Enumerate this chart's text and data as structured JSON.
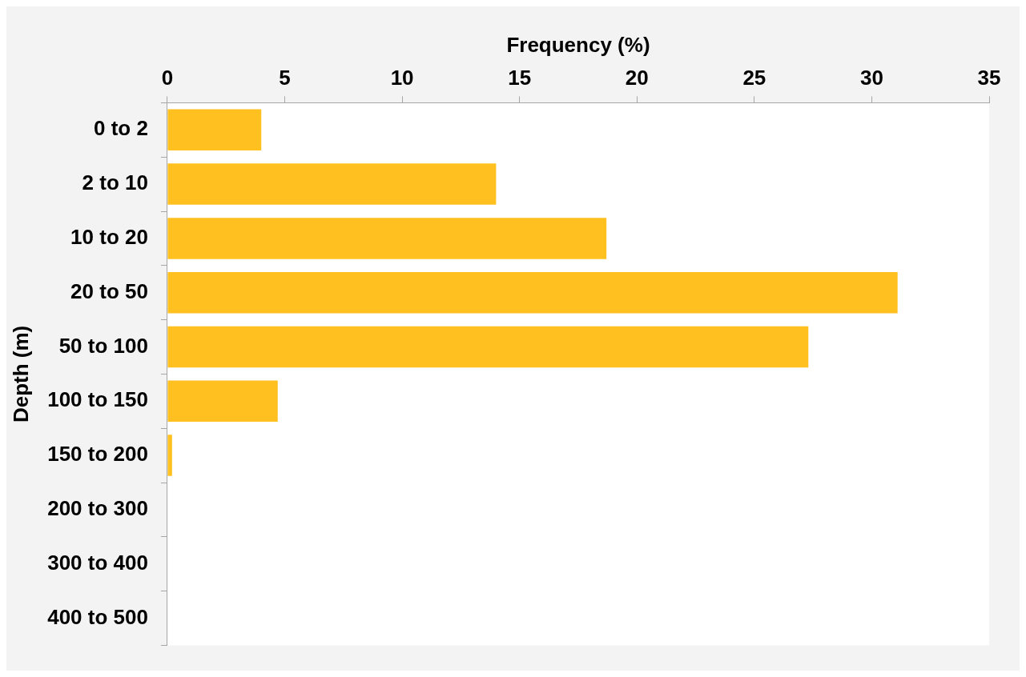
{
  "chart_data": {
    "type": "bar",
    "orientation": "horizontal",
    "xlabel": "Frequency (%)",
    "ylabel": "Depth (m)",
    "categories": [
      "0 to 2",
      "2 to 10",
      "10 to 20",
      "20 to 50",
      "50 to 100",
      "100 to 150",
      "150 to 200",
      "200 to 300",
      "300 to 400",
      "400 to 500"
    ],
    "values": [
      4.0,
      14.0,
      18.7,
      31.1,
      27.3,
      4.7,
      0.2,
      0,
      0,
      0
    ],
    "color": "#ffc020",
    "xlim": [
      0,
      35
    ],
    "xticks": [
      0,
      5,
      10,
      15,
      20,
      25,
      30,
      35
    ],
    "grid": false,
    "legend": false
  }
}
